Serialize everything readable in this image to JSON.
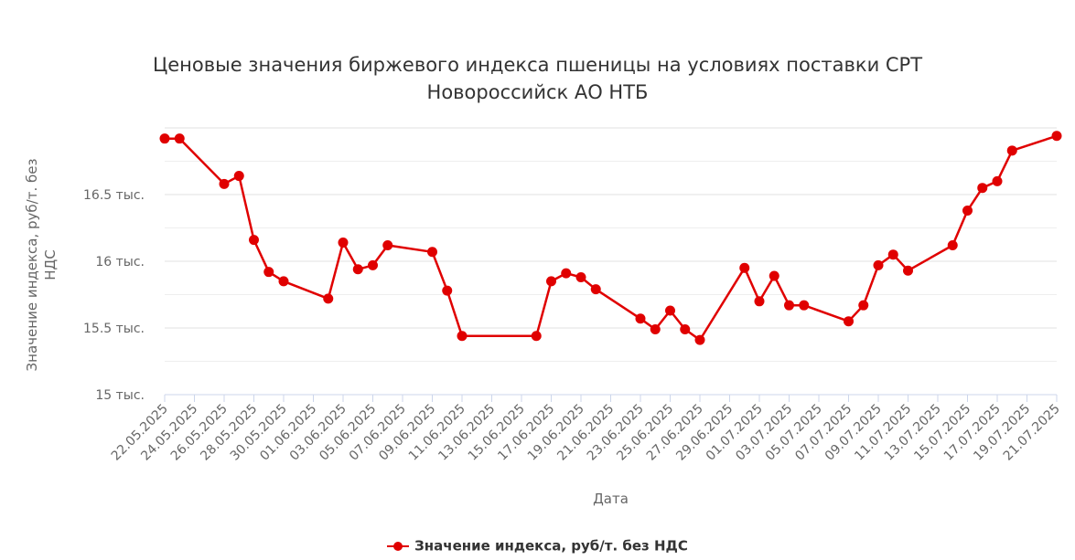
{
  "chart_data": {
    "type": "line",
    "title": "Ценовые значения биржевого индекса пшеницы на условиях поставки CPT Новороссийск АО НТБ",
    "title_lines": [
      "Ценовые значения биржевого индекса пшеницы на условиях поставки CPT",
      "Новороссийск АО НТБ"
    ],
    "xlabel": "Дата",
    "ylabel": "Значение индекса, руб/т. без НДС",
    "y_tick_labels": [
      "15 тыс.",
      "15.5 тыс.",
      "16 тыс.",
      "16.5 тыс."
    ],
    "y_ticks": [
      15000,
      15500,
      16000,
      16500
    ],
    "ylim": [
      15000,
      17000
    ],
    "grid": true,
    "legend_position": "bottom-center",
    "x_tick_labels": [
      "22.05.2025",
      "24.05.2025",
      "26.05.2025",
      "28.05.2025",
      "30.05.2025",
      "01.06.2025",
      "03.06.2025",
      "05.06.2025",
      "07.06.2025",
      "09.06.2025",
      "11.06.2025",
      "13.06.2025",
      "15.06.2025",
      "17.06.2025",
      "19.06.2025",
      "21.06.2025",
      "23.06.2025",
      "25.06.2025",
      "27.06.2025",
      "29.06.2025",
      "01.07.2025",
      "03.07.2025",
      "05.07.2025",
      "07.07.2025",
      "09.07.2025",
      "11.07.2025",
      "13.07.2025",
      "15.07.2025",
      "17.07.2025",
      "19.07.2025",
      "21.07.2025"
    ],
    "color": "#e00000",
    "series": [
      {
        "name": "Значение индекса, руб/т. без НДС",
        "points": [
          {
            "x": "22.05.2025",
            "y": 16920
          },
          {
            "x": "23.05.2025",
            "y": 16920
          },
          {
            "x": "26.05.2025",
            "y": 16580
          },
          {
            "x": "27.05.2025",
            "y": 16640
          },
          {
            "x": "28.05.2025",
            "y": 16160
          },
          {
            "x": "29.05.2025",
            "y": 15920
          },
          {
            "x": "30.05.2025",
            "y": 15850
          },
          {
            "x": "02.06.2025",
            "y": 15720
          },
          {
            "x": "03.06.2025",
            "y": 16140
          },
          {
            "x": "04.06.2025",
            "y": 15940
          },
          {
            "x": "05.06.2025",
            "y": 15970
          },
          {
            "x": "06.06.2025",
            "y": 16120
          },
          {
            "x": "09.06.2025",
            "y": 16070
          },
          {
            "x": "10.06.2025",
            "y": 15780
          },
          {
            "x": "11.06.2025",
            "y": 15440
          },
          {
            "x": "16.06.2025",
            "y": 15440
          },
          {
            "x": "17.06.2025",
            "y": 15850
          },
          {
            "x": "18.06.2025",
            "y": 15910
          },
          {
            "x": "19.06.2025",
            "y": 15880
          },
          {
            "x": "20.06.2025",
            "y": 15790
          },
          {
            "x": "23.06.2025",
            "y": 15570
          },
          {
            "x": "24.06.2025",
            "y": 15490
          },
          {
            "x": "25.06.2025",
            "y": 15630
          },
          {
            "x": "26.06.2025",
            "y": 15490
          },
          {
            "x": "27.06.2025",
            "y": 15410
          },
          {
            "x": "30.06.2025",
            "y": 15950
          },
          {
            "x": "01.07.2025",
            "y": 15700
          },
          {
            "x": "02.07.2025",
            "y": 15890
          },
          {
            "x": "03.07.2025",
            "y": 15670
          },
          {
            "x": "04.07.2025",
            "y": 15670
          },
          {
            "x": "07.07.2025",
            "y": 15550
          },
          {
            "x": "08.07.2025",
            "y": 15670
          },
          {
            "x": "09.07.2025",
            "y": 15970
          },
          {
            "x": "10.07.2025",
            "y": 16050
          },
          {
            "x": "11.07.2025",
            "y": 15930
          },
          {
            "x": "14.07.2025",
            "y": 16120
          },
          {
            "x": "15.07.2025",
            "y": 16380
          },
          {
            "x": "16.07.2025",
            "y": 16550
          },
          {
            "x": "17.07.2025",
            "y": 16600
          },
          {
            "x": "18.07.2025",
            "y": 16830
          },
          {
            "x": "21.07.2025",
            "y": 16940
          }
        ]
      }
    ]
  }
}
